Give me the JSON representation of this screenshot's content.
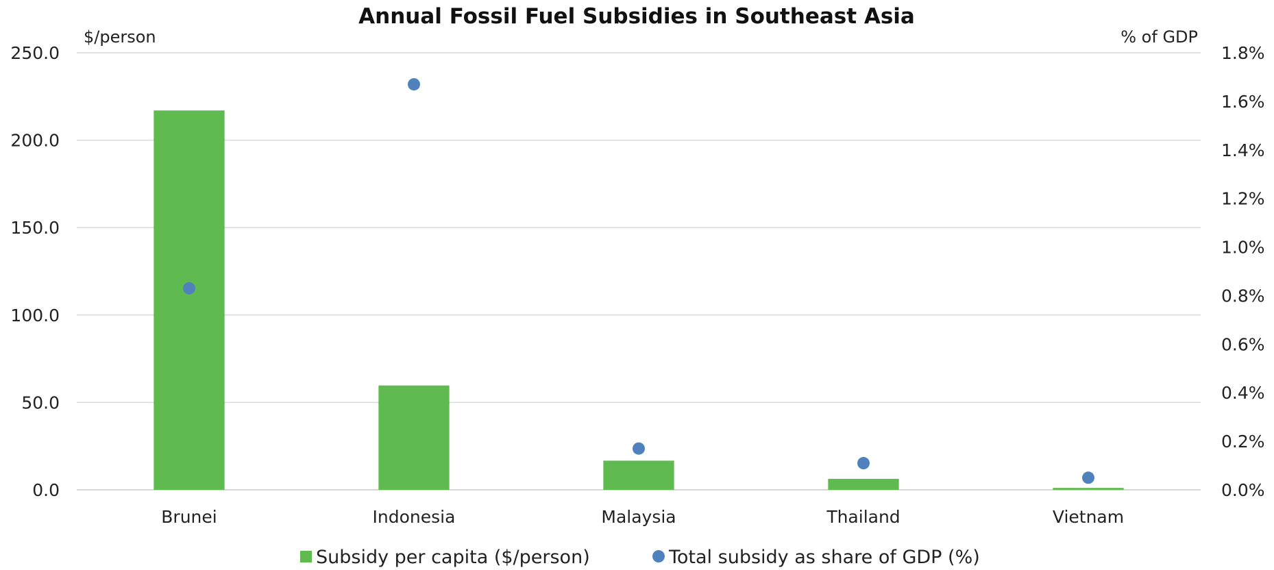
{
  "chart_data": {
    "type": "bar",
    "title": "Annual Fossil Fuel Subsidies in Southeast Asia",
    "categories": [
      "Brunei",
      "Indonesia",
      "Malaysia",
      "Thailand",
      "Vietnam"
    ],
    "series": [
      {
        "name": "Subsidy per capita ($/person)",
        "type": "bar",
        "axis": "left",
        "color": "#5fbb4f",
        "values": [
          217.0,
          59.7,
          16.7,
          6.3,
          1.1
        ]
      },
      {
        "name": "Total subsidy as share of GDP (%)",
        "type": "scatter",
        "axis": "right",
        "color": "#4f81bd",
        "values": [
          0.83,
          1.67,
          0.17,
          0.11,
          0.05
        ]
      }
    ],
    "y_left": {
      "label": "$/person",
      "range": [
        0,
        250
      ],
      "ticks": [
        "0.0",
        "50.0",
        "100.0",
        "150.0",
        "200.0",
        "250.0"
      ]
    },
    "y_right": {
      "label": "% of GDP",
      "range": [
        0,
        1.8
      ],
      "ticks": [
        "0.0%",
        "0.2%",
        "0.4%",
        "0.6%",
        "0.8%",
        "1.0%",
        "1.2%",
        "1.4%",
        "1.6%",
        "1.8%"
      ]
    },
    "grid": true,
    "legend_position": "bottom"
  }
}
